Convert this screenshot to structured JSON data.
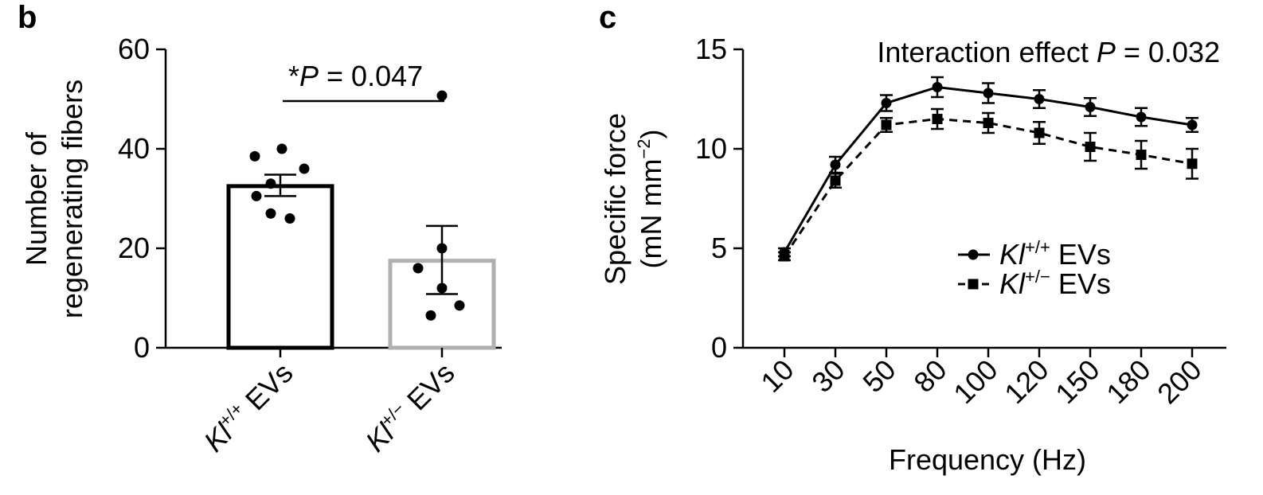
{
  "panels": {
    "b": {
      "letter": "b"
    },
    "c": {
      "letter": "c"
    }
  },
  "chart_data": [
    {
      "type": "bar",
      "panel": "b",
      "categories": [
        "Kl+/+ EVs",
        "Kl+/− EVs"
      ],
      "category_parts": [
        {
          "base": "Kl",
          "sup": "+/+",
          "suffix": " EVs"
        },
        {
          "base": "Kl",
          "sup": "+/−",
          "suffix": " EVs"
        }
      ],
      "values": [
        32.5,
        17.5
      ],
      "error": [
        [
          30.5,
          34.8
        ],
        [
          10.8,
          24.5
        ]
      ],
      "points": [
        [
          40,
          38.5,
          36,
          33,
          30.5,
          27,
          26
        ],
        [
          50.7,
          20,
          16,
          12,
          8.5,
          6.5
        ]
      ],
      "bar_colors": [
        "#000000",
        "#b0b0b0"
      ],
      "ylabel_lines": [
        "Number of",
        "regenerating fibers"
      ],
      "yticks": [
        0,
        20,
        40,
        60
      ],
      "ylim": [
        0,
        60
      ],
      "annotation": {
        "star": "*",
        "p": "P",
        "text": " = 0.047"
      }
    },
    {
      "type": "line",
      "panel": "c",
      "x": [
        "10",
        "30",
        "50",
        "80",
        "100",
        "120",
        "150",
        "180",
        "200"
      ],
      "series": [
        {
          "name": "Kl+/+ EVs",
          "label_parts": {
            "base": "Kl",
            "sup": "+/+",
            "suffix": " EVs"
          },
          "marker": "circle",
          "dash": "solid",
          "values": [
            4.8,
            9.2,
            12.3,
            13.1,
            12.8,
            12.5,
            12.1,
            11.6,
            11.2
          ],
          "err": [
            0.2,
            0.4,
            0.4,
            0.5,
            0.5,
            0.45,
            0.45,
            0.45,
            0.35
          ]
        },
        {
          "name": "Kl+/− EVs",
          "label_parts": {
            "base": "Kl",
            "sup": "+/−",
            "suffix": " EVs"
          },
          "marker": "square",
          "dash": "dashed",
          "values": [
            4.6,
            8.4,
            11.2,
            11.5,
            11.3,
            10.8,
            10.1,
            9.7,
            9.25
          ],
          "err": [
            0.2,
            0.35,
            0.35,
            0.5,
            0.5,
            0.55,
            0.7,
            0.7,
            0.75
          ]
        }
      ],
      "xlabel": "Frequency (Hz)",
      "ylabel_line1": "Specific force",
      "ylabel_line2": {
        "base": "(mN mm",
        "sup": "−2",
        "suffix": ")"
      },
      "yticks": [
        0,
        5,
        10,
        15
      ],
      "ylim": [
        0,
        15
      ],
      "annotation": {
        "prefix": "Interaction effect ",
        "p": "P",
        "text": " = 0.032"
      },
      "legend_position": "center-right"
    }
  ]
}
